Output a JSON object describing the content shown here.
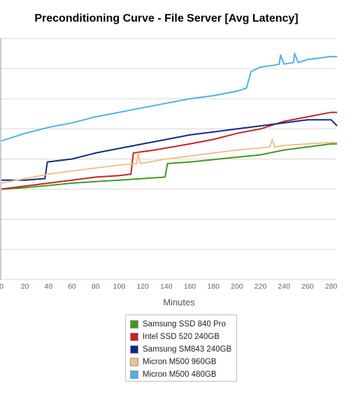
{
  "chart_data": {
    "type": "line",
    "title": "Preconditioning Curve - File Server [Avg Latency]",
    "xlabel": "Minutes",
    "ylabel": "",
    "xlim": [
      0,
      285
    ],
    "x_ticks": [
      0,
      20,
      40,
      60,
      80,
      100,
      120,
      140,
      160,
      180,
      200,
      220,
      240,
      260,
      280
    ],
    "x_tick_labels": [
      "0",
      "20",
      "40",
      "60",
      "80",
      "100",
      "120",
      "140",
      "160",
      "180",
      "200",
      "220",
      "240",
      "260",
      "280"
    ],
    "ylim": [
      0,
      8
    ],
    "grid": true,
    "legend_position": "bottom",
    "series": [
      {
        "name": "Samsung SSD 840 Pro",
        "color": "#3d9b1d",
        "x": [
          0,
          20,
          40,
          60,
          80,
          100,
          120,
          139,
          141,
          160,
          180,
          200,
          220,
          240,
          260,
          280,
          285
        ],
        "y": [
          3.0,
          3.05,
          3.12,
          3.2,
          3.25,
          3.3,
          3.35,
          3.4,
          3.85,
          3.9,
          3.98,
          4.06,
          4.14,
          4.3,
          4.4,
          4.5,
          4.5
        ]
      },
      {
        "name": "Intel SSD 520 240GB",
        "color": "#c72323",
        "x": [
          0,
          20,
          40,
          60,
          80,
          100,
          110,
          112,
          130,
          160,
          180,
          200,
          220,
          240,
          260,
          280,
          285
        ],
        "y": [
          3.0,
          3.1,
          3.2,
          3.3,
          3.4,
          3.45,
          3.5,
          4.2,
          4.3,
          4.5,
          4.65,
          4.85,
          5.0,
          5.25,
          5.4,
          5.55,
          5.55
        ]
      },
      {
        "name": "Samsung SM843 240GB",
        "color": "#0e2a86",
        "x": [
          0,
          20,
          37,
          39,
          60,
          80,
          100,
          120,
          140,
          160,
          180,
          200,
          220,
          240,
          260,
          280,
          285
        ],
        "y": [
          3.3,
          3.3,
          3.35,
          3.9,
          4.0,
          4.2,
          4.35,
          4.5,
          4.65,
          4.8,
          4.9,
          5.0,
          5.1,
          5.2,
          5.3,
          5.3,
          5.1
        ]
      },
      {
        "name": "Micron M500 960GB",
        "color": "#efc28a",
        "x": [
          0,
          20,
          40,
          60,
          80,
          100,
          115,
          116,
          118,
          140,
          160,
          180,
          200,
          228,
          230,
          232,
          240,
          260,
          280,
          285
        ],
        "y": [
          3.2,
          3.35,
          3.5,
          3.6,
          3.7,
          3.8,
          3.85,
          4.2,
          3.85,
          4.0,
          4.1,
          4.2,
          4.3,
          4.4,
          4.65,
          4.4,
          4.45,
          4.5,
          4.55,
          4.55
        ]
      },
      {
        "name": "Micron M500 480GB",
        "color": "#4ab3e6",
        "x": [
          0,
          20,
          40,
          60,
          80,
          100,
          120,
          140,
          160,
          180,
          200,
          208,
          212,
          220,
          230,
          236,
          237,
          240,
          248,
          249,
          252,
          260,
          270,
          280,
          285
        ],
        "y": [
          4.6,
          4.85,
          5.05,
          5.2,
          5.4,
          5.55,
          5.7,
          5.85,
          6.0,
          6.1,
          6.25,
          6.35,
          6.9,
          7.05,
          7.1,
          7.15,
          7.45,
          7.15,
          7.2,
          7.5,
          7.2,
          7.3,
          7.35,
          7.4,
          7.4
        ]
      }
    ]
  }
}
